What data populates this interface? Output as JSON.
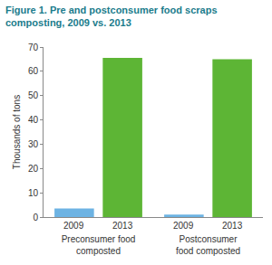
{
  "chart_data": {
    "type": "bar",
    "title": "Figure 1. Pre and postconsumer food scraps composting, 2009 vs. 2013",
    "categories": [
      "Preconsumer food composted",
      "Postconsumer food composted"
    ],
    "series": [
      {
        "name": "2009",
        "color": "#6db3e3",
        "values": [
          3.5,
          1
        ]
      },
      {
        "name": "2013",
        "color": "#5db535",
        "values": [
          65.5,
          65
        ]
      }
    ],
    "ylabel": "Thousands of tons",
    "ylim": [
      0,
      70
    ],
    "yticks": [
      0,
      10,
      20,
      30,
      40,
      50,
      60,
      70
    ],
    "grid": false
  }
}
